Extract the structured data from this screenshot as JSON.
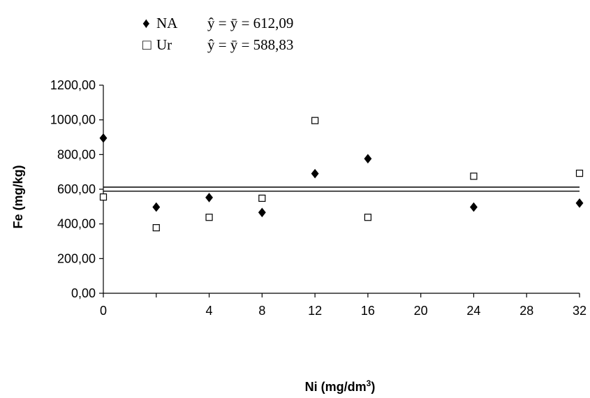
{
  "chart_data": {
    "type": "scatter",
    "xlabel": "Ni (mg/dm",
    "xlabel_sup": "3",
    "xlabel_end": ")",
    "ylabel": "Fe (mg/kg)",
    "x_categories": [
      "0",
      "2",
      "4",
      "8",
      "12",
      "16",
      "20",
      "24",
      "28",
      "32"
    ],
    "x_tick_labels": [
      "0",
      "4",
      "8",
      "12",
      "16",
      "20",
      "24",
      "28",
      "32"
    ],
    "y_tick_labels": [
      "0,00",
      "200,00",
      "400,00",
      "600,00",
      "800,00",
      "1000,00",
      "1200,00"
    ],
    "ylim": [
      0,
      1200
    ],
    "grid": false,
    "legend_position": "top",
    "series": [
      {
        "name": "NA",
        "marker": "filled-diamond",
        "color": "#000000",
        "points": [
          {
            "x": "0",
            "y": 895
          },
          {
            "x": "2",
            "y": 497
          },
          {
            "x": "4",
            "y": 552
          },
          {
            "x": "8",
            "y": 466
          },
          {
            "x": "12",
            "y": 690
          },
          {
            "x": "16",
            "y": 776
          },
          {
            "x": "24",
            "y": 497
          },
          {
            "x": "32",
            "y": 520
          }
        ],
        "fit_label": "ŷ = ȳ = 612,09",
        "fit_value": 612.09
      },
      {
        "name": "Ur",
        "marker": "open-square",
        "color": "#000000",
        "points": [
          {
            "x": "0",
            "y": 555
          },
          {
            "x": "2",
            "y": 378
          },
          {
            "x": "4",
            "y": 438
          },
          {
            "x": "8",
            "y": 548
          },
          {
            "x": "12",
            "y": 996
          },
          {
            "x": "16",
            "y": 438
          },
          {
            "x": "24",
            "y": 675
          },
          {
            "x": "32",
            "y": 692
          }
        ],
        "fit_label": "ŷ = ȳ = 588,83",
        "fit_value": 588.83
      }
    ],
    "legend": {
      "entries": [
        {
          "symbol": "♦",
          "name": "NA",
          "equation": "ŷ = ȳ = 612,09"
        },
        {
          "symbol": "□",
          "name": "Ur",
          "equation": "ŷ = ȳ = 588,83"
        }
      ]
    }
  }
}
